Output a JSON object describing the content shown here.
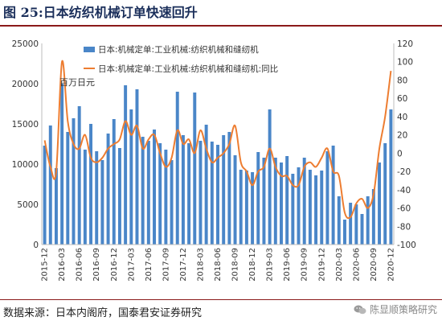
{
  "figure": {
    "title": "图 25:日本纺织机械订单快速回升",
    "source": "数据来源：日本内阁府，国泰君安证券研究",
    "watermark": "陈显顺策略研究"
  },
  "chart_data": {
    "type": "bar",
    "legend": [
      "日本:机械定单:工业机械:纺织机械和缝纫机",
      "日本:机械定单:工业机械:纺织机械和缝纫机:同比"
    ],
    "legend_placement": "top-center",
    "unit_note": "百万日元",
    "x": [
      "2015-12",
      "2016-01",
      "2016-02",
      "2016-03",
      "2016-04",
      "2016-05",
      "2016-06",
      "2016-07",
      "2016-08",
      "2016-09",
      "2016-10",
      "2016-11",
      "2016-12",
      "2017-01",
      "2017-02",
      "2017-03",
      "2017-04",
      "2017-05",
      "2017-06",
      "2017-07",
      "2017-08",
      "2017-09",
      "2017-10",
      "2017-11",
      "2017-12",
      "2018-01",
      "2018-02",
      "2018-03",
      "2018-04",
      "2018-05",
      "2018-06",
      "2018-07",
      "2018-08",
      "2018-09",
      "2018-10",
      "2018-11",
      "2018-12",
      "2019-01",
      "2019-02",
      "2019-03",
      "2019-04",
      "2019-05",
      "2019-06",
      "2019-07",
      "2019-08",
      "2019-09",
      "2019-10",
      "2019-11",
      "2019-12",
      "2020-01",
      "2020-02",
      "2020-03",
      "2020-04",
      "2020-05",
      "2020-06",
      "2020-07",
      "2020-08",
      "2020-09",
      "2020-10",
      "2020-11",
      "2020-12"
    ],
    "x_tick_labels": [
      "2015-12",
      "2016-03",
      "2016-06",
      "2016-09",
      "2016-12",
      "2017-03",
      "2017-06",
      "2017-09",
      "2017-12",
      "2018-03",
      "2018-06",
      "2018-09",
      "2018-12",
      "2019-03",
      "2019-06",
      "2019-09",
      "2019-12",
      "2020-03",
      "2020-06",
      "2020-09",
      "2020-12"
    ],
    "series": [
      {
        "name": "日本:机械定单:工业机械:纺织机械和缝纫机",
        "type": "bar",
        "axis": "left",
        "color": "#4a86c8",
        "values": [
          12300,
          14800,
          9500,
          20000,
          14000,
          15700,
          17200,
          11800,
          15000,
          11600,
          10500,
          13800,
          15600,
          12000,
          19800,
          16800,
          19300,
          13400,
          12900,
          14300,
          12600,
          11800,
          10500,
          19000,
          13600,
          12600,
          18900,
          12900,
          14900,
          12800,
          12400,
          13600,
          14000,
          11100,
          9300,
          9200,
          9000,
          11500,
          10800,
          16800,
          10800,
          10200,
          11000,
          8800,
          9600,
          10800,
          9300,
          8600,
          9200,
          11600,
          12300,
          6000,
          3100,
          5200,
          5000,
          3800,
          6000,
          6900,
          10200,
          12600,
          16800
        ]
      },
      {
        "name": "日本:机械定单:工业机械:纺织机械和缝纫机:同比",
        "type": "line",
        "axis": "right",
        "color": "#ed7d31",
        "values": [
          14,
          -15,
          -20,
          100,
          35,
          10,
          5,
          20,
          -5,
          -10,
          -5,
          5,
          10,
          15,
          35,
          20,
          30,
          5,
          15,
          20,
          0,
          -15,
          -5,
          25,
          10,
          15,
          0,
          25,
          5,
          -10,
          -5,
          0,
          10,
          30,
          -10,
          -20,
          -35,
          -20,
          -15,
          5,
          -15,
          -25,
          -25,
          -35,
          -35,
          -15,
          -10,
          -15,
          -5,
          5,
          -20,
          -25,
          -65,
          -70,
          -55,
          -50,
          -60,
          -45,
          5,
          40,
          90
        ]
      }
    ],
    "y_left": {
      "min": 0,
      "max": 25000,
      "ticks": [
        0,
        5000,
        10000,
        15000,
        20000,
        25000
      ]
    },
    "y_right": {
      "min": -100,
      "max": 120,
      "ticks": [
        -100,
        -80,
        -60,
        -40,
        -20,
        0,
        20,
        40,
        60,
        80,
        100,
        120
      ]
    },
    "grid": false
  }
}
